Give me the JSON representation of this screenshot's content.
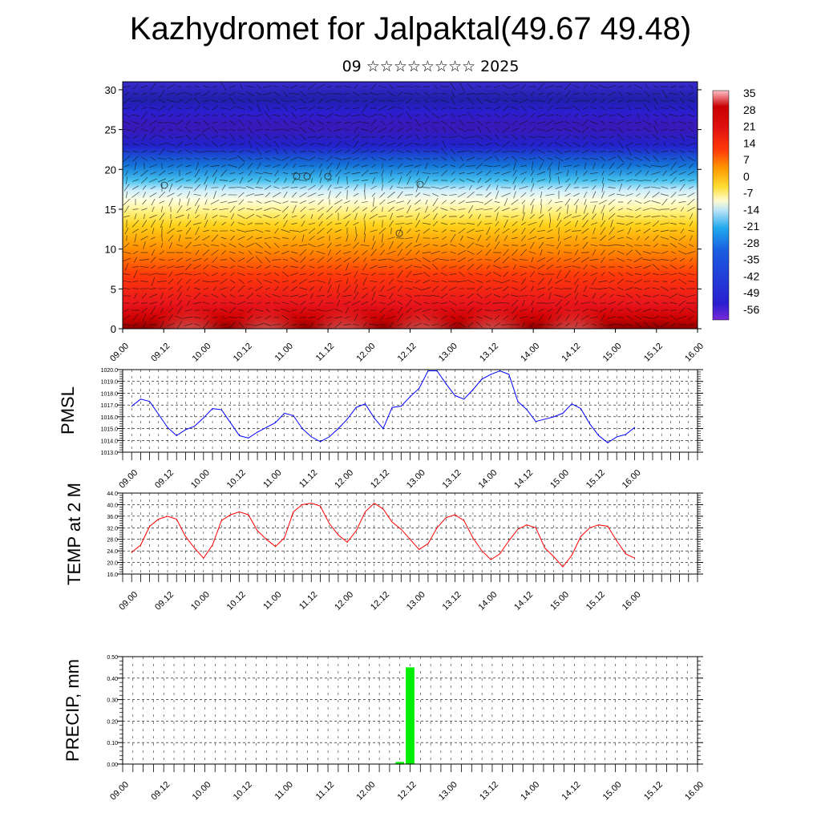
{
  "title": "Kazhydromet for Jalpaktal(49.67 49.48)",
  "subtitle": "09 ☆☆☆☆☆☆☆☆ 2025",
  "time_labels": [
    "09.00",
    "09.12",
    "10.00",
    "10.12",
    "11.00",
    "11.12",
    "12.00",
    "12.12",
    "13.00",
    "13.12",
    "14.00",
    "14.12",
    "15.00",
    "15.12",
    "16.00"
  ],
  "colors": {
    "pmsl_line": "#0000ff",
    "temp_line": "#ff0000",
    "precip_bar": "#00ee00"
  },
  "chart_data": [
    {
      "type": "heatmap",
      "title": "Kazhydromet for Jalpaktal(49.67 49.48)",
      "ylim": [
        0,
        31
      ],
      "yticks": [
        0,
        5,
        10,
        15,
        20,
        25,
        30
      ],
      "x": [
        "09.00",
        "09.12",
        "10.00",
        "10.12",
        "11.00",
        "11.12",
        "12.00",
        "12.12",
        "13.00",
        "13.12",
        "14.00",
        "14.12",
        "15.00",
        "15.12",
        "16.00"
      ],
      "colorbar_labels": [
        "35",
        "28",
        "21",
        "14",
        "7",
        "0",
        "-7",
        "-14",
        "-21",
        "-28",
        "-35",
        "-42",
        "-49",
        "-56"
      ],
      "colorbar_range": [
        -63,
        42
      ],
      "overlay": "wind vectors"
    },
    {
      "type": "line",
      "ylabel": "PMSL",
      "ylim": [
        1013.0,
        1020.0
      ],
      "yticks": [
        "1013.0",
        "1014.0",
        "1015.0",
        "1016.0",
        "1017.0",
        "1018.0",
        "1019.0",
        "1020.0"
      ],
      "x": [
        "09.00",
        "09.03",
        "09.06",
        "09.09",
        "09.12",
        "09.15",
        "09.18",
        "09.21",
        "10.00",
        "10.03",
        "10.06",
        "10.09",
        "10.12",
        "10.15",
        "10.18",
        "10.21",
        "11.00",
        "11.03",
        "11.06",
        "11.09",
        "11.12",
        "11.15",
        "11.18",
        "11.21",
        "12.00",
        "12.03",
        "12.06",
        "12.09",
        "12.12",
        "12.15",
        "12.18",
        "12.21",
        "13.00",
        "13.03",
        "13.06",
        "13.09",
        "13.12",
        "13.15",
        "13.18",
        "13.21",
        "14.00",
        "14.03",
        "14.06",
        "14.09",
        "14.12",
        "14.15",
        "14.18",
        "14.21",
        "15.00",
        "15.03",
        "15.06",
        "15.09",
        "15.12",
        "15.15",
        "15.18",
        "15.21",
        "16.00"
      ],
      "series": [
        {
          "values": [
            1016.9,
            1017.5,
            1017.3,
            1016.2,
            1015.1,
            1014.4,
            1014.9,
            1015.2,
            1015.9,
            1016.7,
            1016.6,
            1015.5,
            1014.4,
            1014.2,
            1014.7,
            1015.1,
            1015.5,
            1016.3,
            1016.1,
            1015.0,
            1014.3,
            1013.9,
            1014.3,
            1015.0,
            1015.8,
            1016.8,
            1017.1,
            1015.9,
            1015.0,
            1016.8,
            1016.9,
            1017.7,
            1018.4,
            1019.9,
            1019.9,
            1018.8,
            1017.8,
            1017.5,
            1018.3,
            1019.2,
            1019.6,
            1019.9,
            1019.6,
            1017.3,
            1016.6,
            1015.6,
            1015.8,
            1016.0,
            1016.3,
            1017.1,
            1016.7,
            1015.4,
            1014.4,
            1013.8,
            1014.3,
            1014.5,
            1015.1
          ]
        }
      ]
    },
    {
      "type": "line",
      "ylabel": "TEMP at 2 M",
      "ylim": [
        16.0,
        44.0
      ],
      "yticks": [
        "16.0",
        "20.0",
        "24.0",
        "28.0",
        "32.0",
        "36.0",
        "40.0",
        "44.0"
      ],
      "x": [
        "09.00",
        "09.03",
        "09.06",
        "09.09",
        "09.12",
        "09.15",
        "09.18",
        "09.21",
        "10.00",
        "10.03",
        "10.06",
        "10.09",
        "10.12",
        "10.15",
        "10.18",
        "10.21",
        "11.00",
        "11.03",
        "11.06",
        "11.09",
        "11.12",
        "11.15",
        "11.18",
        "11.21",
        "12.00",
        "12.03",
        "12.06",
        "12.09",
        "12.12",
        "12.15",
        "12.18",
        "12.21",
        "13.00",
        "13.03",
        "13.06",
        "13.09",
        "13.12",
        "13.15",
        "13.18",
        "13.21",
        "14.00",
        "14.03",
        "14.06",
        "14.09",
        "14.12",
        "14.15",
        "14.18",
        "14.21",
        "15.00",
        "15.03",
        "15.06",
        "15.09",
        "15.12",
        "15.15",
        "15.18",
        "15.21",
        "16.00"
      ],
      "series": [
        {
          "values": [
            23.5,
            26.0,
            32.5,
            35.0,
            36.0,
            35.0,
            29.0,
            25.0,
            21.5,
            26.0,
            34.5,
            36.5,
            37.5,
            36.5,
            31.0,
            28.0,
            25.5,
            28.5,
            37.5,
            40.0,
            40.5,
            39.5,
            33.5,
            29.5,
            27.0,
            31.0,
            37.5,
            40.5,
            38.5,
            34.0,
            31.5,
            28.0,
            24.5,
            26.5,
            32.0,
            35.5,
            36.5,
            34.5,
            28.5,
            24.0,
            21.0,
            23.0,
            27.5,
            31.5,
            33.0,
            32.0,
            25.0,
            22.0,
            18.5,
            22.5,
            29.0,
            32.0,
            33.0,
            32.5,
            27.5,
            23.0,
            21.5
          ]
        }
      ]
    },
    {
      "type": "bar",
      "ylabel": "PRECIP, mm",
      "ylim": [
        0.0,
        0.5
      ],
      "yticks": [
        "0.00",
        "0.10",
        "0.20",
        "0.30",
        "0.40",
        "0.50"
      ],
      "categories": [
        "12.09",
        "12.12"
      ],
      "values": [
        0.01,
        0.45
      ]
    }
  ]
}
